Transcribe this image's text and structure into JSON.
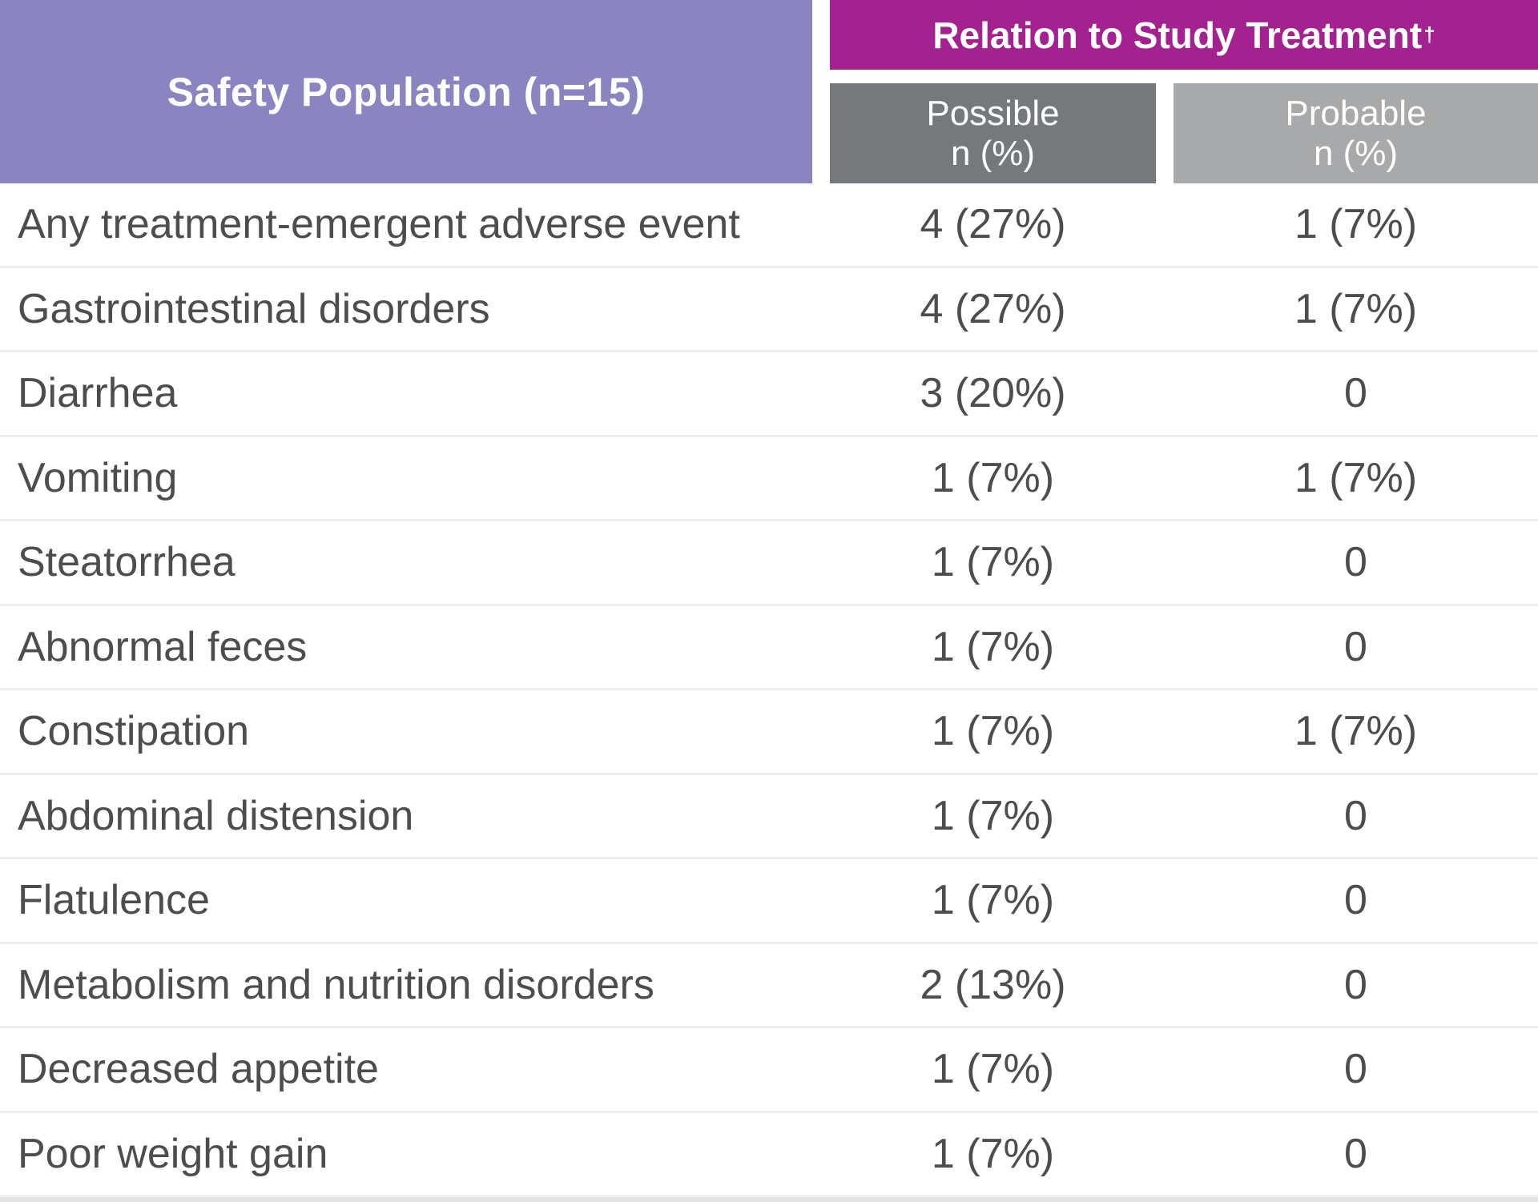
{
  "header": {
    "population_label": "Safety Population (n=15)",
    "relation_label": "Relation to Study Treatment",
    "relation_mark": "†",
    "possible_line1": "Possible",
    "possible_line2": "n (%)",
    "probable_line1": "Probable",
    "probable_line2": "n (%)"
  },
  "colors": {
    "population_header": "#8a85c1",
    "relation_header": "#a3228f",
    "possible_header": "#75797c",
    "probable_header": "#a7a9ab"
  },
  "rows": [
    {
      "label": "Any treatment-emergent adverse event",
      "possible": "4 (27%)",
      "probable": "1 (7%)"
    },
    {
      "label": "Gastrointestinal disorders",
      "possible": "4 (27%)",
      "probable": "1 (7%)"
    },
    {
      "label": "Diarrhea",
      "possible": "3 (20%)",
      "probable": "0"
    },
    {
      "label": "Vomiting",
      "possible": "1 (7%)",
      "probable": "1 (7%)"
    },
    {
      "label": "Steatorrhea",
      "possible": "1 (7%)",
      "probable": "0"
    },
    {
      "label": "Abnormal feces",
      "possible": "1 (7%)",
      "probable": "0"
    },
    {
      "label": "Constipation",
      "possible": "1 (7%)",
      "probable": "1 (7%)"
    },
    {
      "label": "Abdominal distension",
      "possible": "1 (7%)",
      "probable": "0"
    },
    {
      "label": "Flatulence",
      "possible": "1 (7%)",
      "probable": "0"
    },
    {
      "label": "Metabolism and nutrition disorders",
      "possible": "2 (13%)",
      "probable": "0"
    },
    {
      "label": "Decreased appetite",
      "possible": "1 (7%)",
      "probable": "0"
    },
    {
      "label": "Poor weight gain",
      "possible": "1 (7%)",
      "probable": "0"
    }
  ]
}
